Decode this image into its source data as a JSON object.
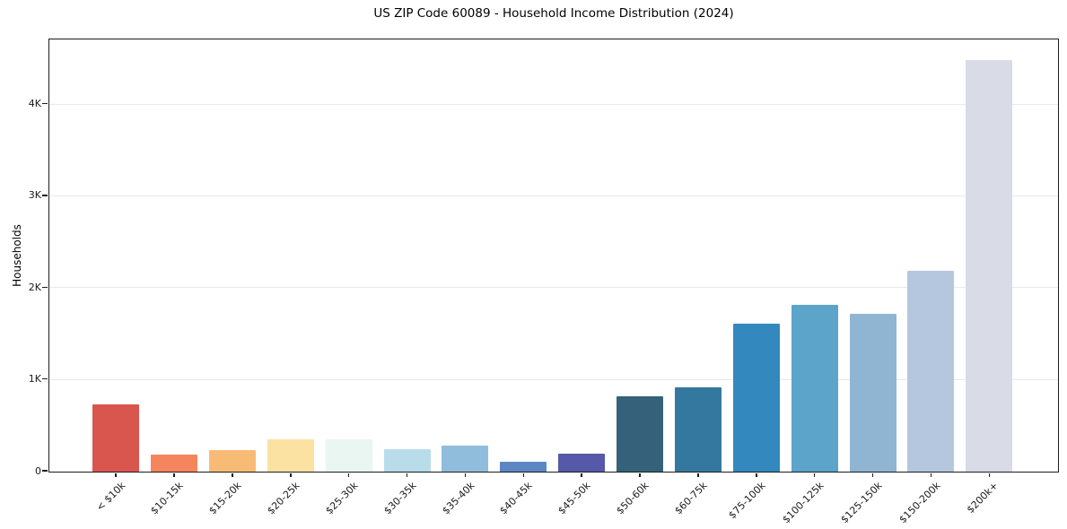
{
  "chart_data": {
    "type": "bar",
    "title": "US ZIP Code 60089 - Household Income Distribution (2024)",
    "xlabel": "",
    "ylabel": "Households",
    "categories": [
      "< $10k",
      "$10-15k",
      "$15-20k",
      "$20-25k",
      "$25-30k",
      "$30-35k",
      "$35-40k",
      "$40-45k",
      "$45-50k",
      "$50-60k",
      "$60-75k",
      "$75-100k",
      "$100-125k",
      "$125-150k",
      "$150-200k",
      "$200k+"
    ],
    "values": [
      730,
      190,
      230,
      350,
      350,
      240,
      280,
      110,
      200,
      820,
      920,
      1615,
      1820,
      1720,
      2185,
      4490
    ],
    "bar_colors": [
      "#d9564f",
      "#f5855e",
      "#f8bb76",
      "#fce2a2",
      "#e9f6f1",
      "#b8dcea",
      "#90bddc",
      "#5c86c4",
      "#5559a7",
      "#35627a",
      "#35789f",
      "#3389bd",
      "#5ca4ca",
      "#90b5d3",
      "#b5c7de",
      "#d9dbe7"
    ],
    "y_ticks": [
      {
        "value": 0,
        "label": "0"
      },
      {
        "value": 1000,
        "label": "1K"
      },
      {
        "value": 2000,
        "label": "2K"
      },
      {
        "value": 3000,
        "label": "3K"
      },
      {
        "value": 4000,
        "label": "4K"
      }
    ],
    "ylim": [
      0,
      4700
    ],
    "grid": "horizontal",
    "legend": "none"
  },
  "colors": {
    "grid": "#e9e9ed",
    "spine": "#1c1c1c",
    "text": "#1a1a1a",
    "background": "#ffffff"
  }
}
